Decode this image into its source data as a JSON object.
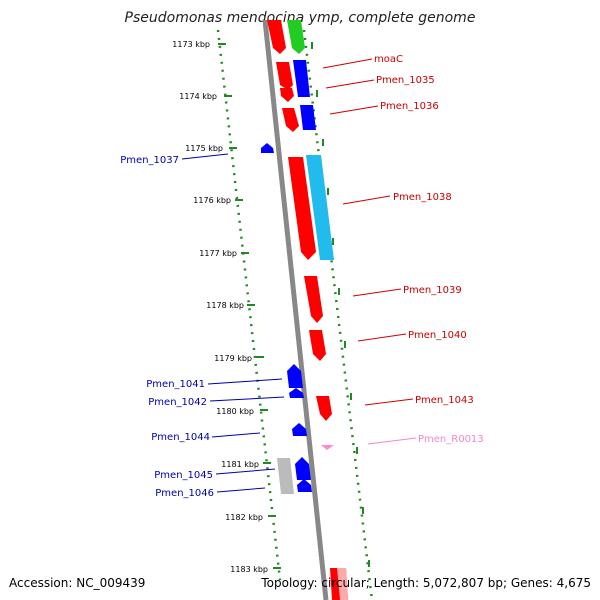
{
  "title": "Pseudomonas mendocina ymp, complete genome",
  "footer": {
    "accession": "Accession: NC_009439",
    "topology": "Topology: circular; Length: 5,072,807 bp; Genes: 4,675"
  },
  "colors": {
    "backbone": "#888888",
    "dotted_ring": "#228822",
    "forward_gene": "#ff0000",
    "reverse_gene": "#0000ff",
    "rna_gene": "#ff88cc",
    "other_gene": "#00cc00",
    "highlight_gene": "#22bbee",
    "pseudo_gene": "#bbbbbb",
    "forward_label": "#cc0000",
    "reverse_label": "#0000aa"
  },
  "ticks": [
    {
      "label": "1173 kbp"
    },
    {
      "label": "1174 kbp"
    },
    {
      "label": "1175 kbp"
    },
    {
      "label": "1176 kbp"
    },
    {
      "label": "1177 kbp"
    },
    {
      "label": "1178 kbp"
    },
    {
      "label": "1179 kbp"
    },
    {
      "label": "1180 kbp"
    },
    {
      "label": "1181 kbp"
    },
    {
      "label": "1182 kbp"
    },
    {
      "label": "1183 kbp"
    }
  ],
  "gene_labels": [
    {
      "text": "moaC",
      "side": "right",
      "kind": "cds"
    },
    {
      "text": "Pmen_1035",
      "side": "right",
      "kind": "cds"
    },
    {
      "text": "Pmen_1036",
      "side": "right",
      "kind": "cds"
    },
    {
      "text": "Pmen_1037",
      "side": "left",
      "kind": "cds"
    },
    {
      "text": "Pmen_1038",
      "side": "right",
      "kind": "cds"
    },
    {
      "text": "Pmen_1039",
      "side": "right",
      "kind": "cds"
    },
    {
      "text": "Pmen_1040",
      "side": "right",
      "kind": "cds"
    },
    {
      "text": "Pmen_1041",
      "side": "left",
      "kind": "cds"
    },
    {
      "text": "Pmen_1042",
      "side": "left",
      "kind": "cds"
    },
    {
      "text": "Pmen_1043",
      "side": "right",
      "kind": "cds"
    },
    {
      "text": "Pmen_1044",
      "side": "left",
      "kind": "cds"
    },
    {
      "text": "Pmen_R0013",
      "side": "right",
      "kind": "rna"
    },
    {
      "text": "Pmen_1045",
      "side": "left",
      "kind": "cds"
    },
    {
      "text": "Pmen_1046",
      "side": "left",
      "kind": "cds"
    }
  ]
}
